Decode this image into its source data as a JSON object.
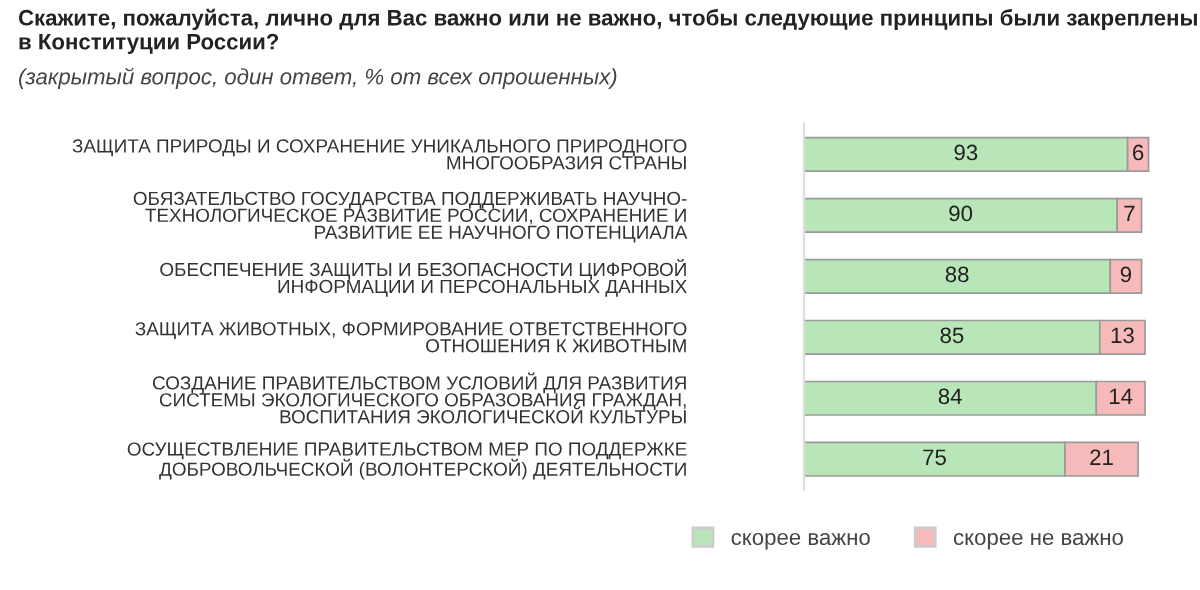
{
  "chart_data": {
    "type": "bar",
    "orientation": "horizontal",
    "stacked": true,
    "title": "Скажите, пожалуйста, лично для Вас важно или не важно, чтобы следующие принципы были закреплены в Конституции России?",
    "subtitle": "(закрытый вопрос, один ответ, % от всех опрошенных)",
    "categories": [
      "ЗАЩИТА ПРИРОДЫ И СОХРАНЕНИЕ УНИКАЛЬНОГО ПРИРОДНОГО\nМНОГООБРАЗИЯ СТРАНЫ",
      "ОБЯЗАТЕЛЬСТВО ГОСУДАРСТВА ПОДДЕРЖИВАТЬ НАУЧНО-\nТЕХНОЛОГИЧЕСКОЕ РАЗВИТИЕ РОССИИ, СОХРАНЕНИЕ И\nРАЗВИТИЕ ЕЕ НАУЧНОГО ПОТЕНЦИАЛА",
      "ОБЕСПЕЧЕНИЕ ЗАЩИТЫ И БЕЗОПАСНОСТИ ЦИФРОВОЙ\nИНФОРМАЦИИ И ПЕРСОНАЛЬНЫХ ДАННЫХ",
      "ЗАЩИТА ЖИВОТНЫХ, ФОРМИРОВАНИЕ ОТВЕТСТВЕННОГО\nОТНОШЕНИЯ К ЖИВОТНЫМ",
      "СОЗДАНИЕ ПРАВИТЕЛЬСТВОМ УСЛОВИЙ ДЛЯ РАЗВИТИЯ\nСИСТЕМЫ ЭКОЛОГИЧЕСКОГО ОБРАЗОВАНИЯ ГРАЖДАН,\nВОСПИТАНИЯ ЭКОЛОГИЧЕСКОЙ КУЛЬТУРЫ",
      "ОСУЩЕСТВЛЕНИЕ ПРАВИТЕЛЬСТВОМ МЕР ПО ПОДДЕРЖКЕ\nДОБРОВОЛЬЧЕСКОЙ (ВОЛОНТЕРСКОЙ) ДЕЯТЕЛЬНОСТИ"
    ],
    "series": [
      {
        "name": "скорее важно",
        "color": "#b8e6b8",
        "values": [
          93,
          90,
          88,
          85,
          84,
          75
        ]
      },
      {
        "name": "скорее не важно",
        "color": "#f7baba",
        "values": [
          6,
          7,
          9,
          13,
          14,
          21
        ]
      }
    ],
    "xlim": [
      0,
      100
    ],
    "tick_labels": "y",
    "data_labels": true,
    "legend": "bottom",
    "grid": false
  }
}
